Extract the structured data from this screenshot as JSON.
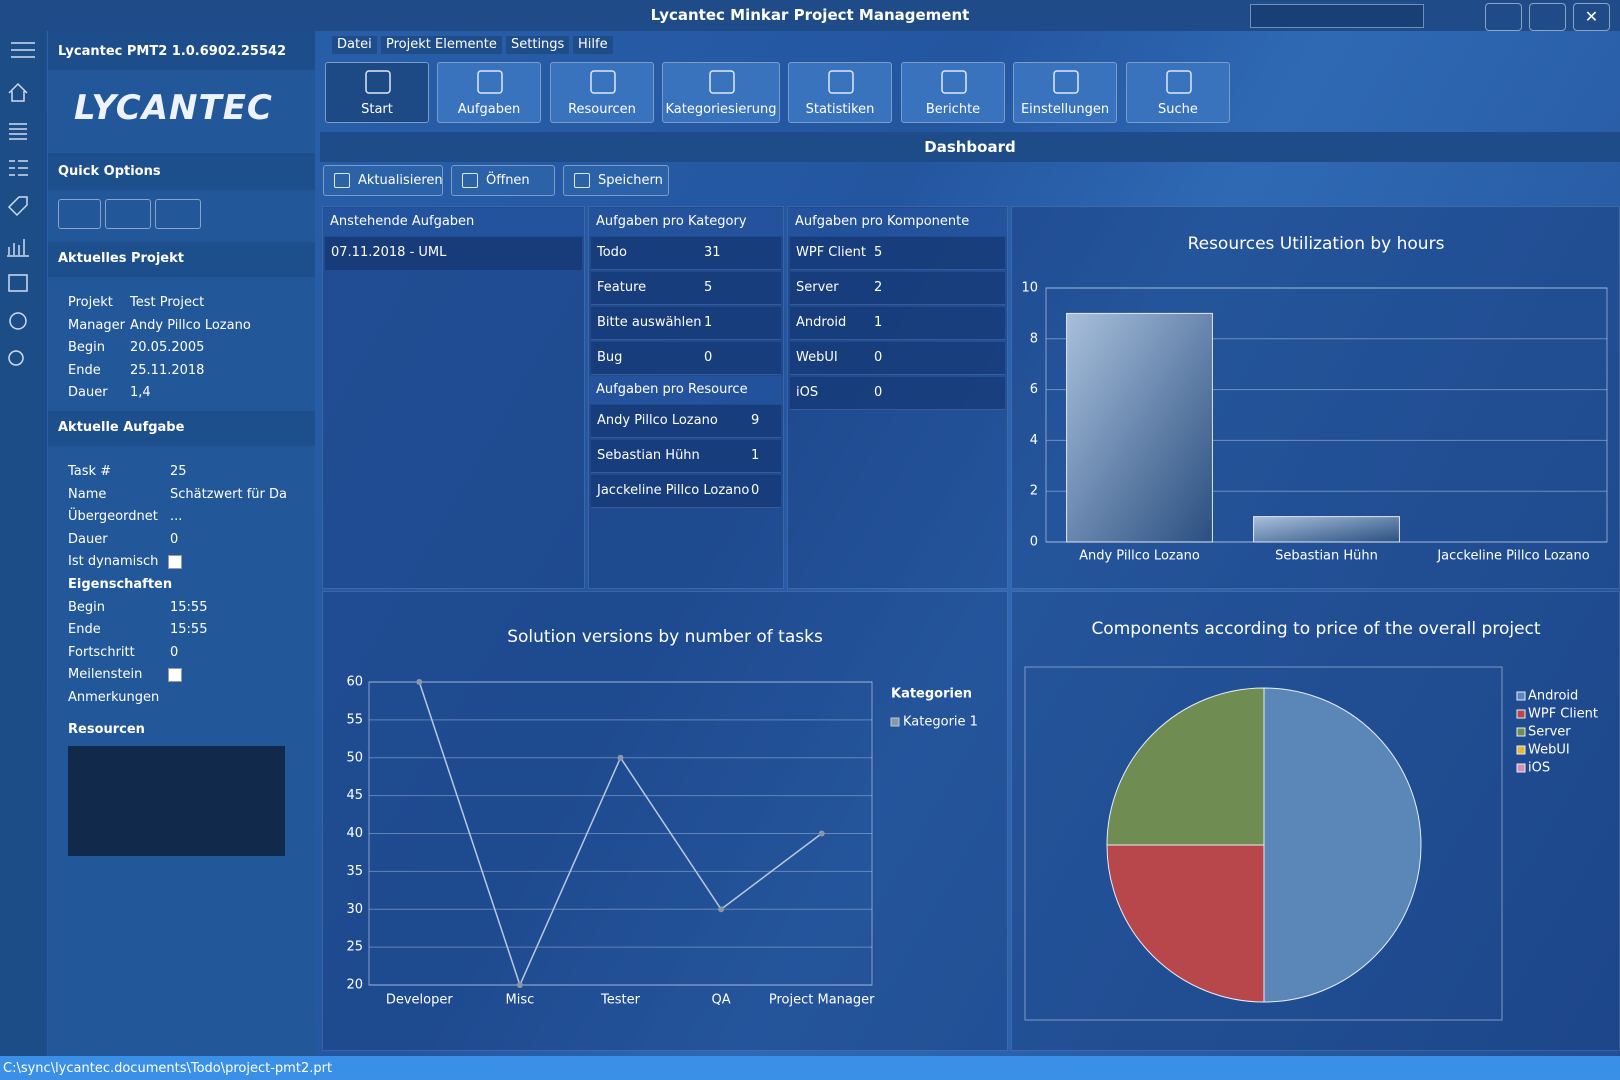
{
  "window": {
    "title": "Lycantec Minkar Project Management"
  },
  "sidebar": {
    "version": "Lycantec PMT2 1.0.6902.25542",
    "logo": "LYCANTEC",
    "quick_options": "Quick Options",
    "project": {
      "title": "Aktuelles Projekt",
      "rows": [
        [
          "Projekt",
          "Test Project"
        ],
        [
          "Manager",
          "Andy Pillco Lozano"
        ],
        [
          "Begin",
          "20.05.2005"
        ],
        [
          "Ende",
          "25.11.2018"
        ],
        [
          "Dauer",
          "1,4"
        ]
      ]
    },
    "task": {
      "title": "Aktuelle Aufgabe",
      "rows": [
        [
          "Task #",
          25
        ],
        [
          "Name",
          "Schätzwert für Daue"
        ],
        [
          "Übergeordnet",
          "..."
        ],
        [
          "Dauer",
          0
        ],
        [
          "Ist dynamisch",
          false
        ]
      ],
      "properties_title": "Eigenschaften",
      "properties": [
        [
          "Begin",
          "15:55"
        ],
        [
          "Ende",
          "15:55"
        ],
        [
          "Fortschritt",
          0
        ],
        [
          "Meilenstein",
          false
        ],
        [
          "Anmerkungen"
        ]
      ]
    },
    "resources_title": "Resourcen"
  },
  "menu": [
    "Datei",
    "Projekt Elemente",
    "Settings",
    "Hilfe"
  ],
  "toolbar": [
    "Start",
    "Aufgaben",
    "Resourcen",
    "Kategoriesierung",
    "Statistiken",
    "Berichte",
    "Einstellungen",
    "Suche"
  ],
  "dashboard": {
    "title": "Dashboard",
    "buttons": [
      "Aktualisieren",
      "Öffnen",
      "Speichern"
    ],
    "pending": {
      "title": "Anstehende Aufgaben",
      "items": [
        "07.11.2018 - UML"
      ]
    },
    "per_category": {
      "title": "Aufgaben pro Kategory",
      "rows": [
        [
          "Todo",
          31
        ],
        [
          "Feature",
          5
        ],
        [
          "Bitte auswählen",
          1
        ],
        [
          "Bug",
          0
        ]
      ]
    },
    "per_resource": {
      "title": "Aufgaben pro Resource",
      "rows": [
        [
          "Andy Pillco Lozano",
          9
        ],
        [
          "Sebastian Hühn",
          1
        ],
        [
          "Jacckeline Pillco Lozano",
          0
        ]
      ]
    },
    "per_component": {
      "title": "Aufgaben pro Komponente",
      "rows": [
        [
          "WPF Client",
          5
        ],
        [
          "Server",
          2
        ],
        [
          "Android",
          1
        ],
        [
          "WebUI",
          0
        ],
        [
          "iOS",
          0
        ]
      ]
    },
    "resource_chart": {
      "type": "bar",
      "title": "Resources Utilization by hours",
      "categories": [
        "Andy Pillco Lozano",
        "Sebastian Hühn",
        "Jacckeline Pillco Lozano"
      ],
      "values": [
        9,
        1,
        0
      ],
      "color": "#a9c0dc",
      "ylim": [
        0,
        10
      ],
      "yticks": [
        0,
        2,
        4,
        6,
        8,
        10
      ],
      "grid": true
    },
    "version_chart": {
      "type": "line",
      "title": "Solution versions by number of tasks",
      "categories": [
        "Developer",
        "Misc",
        "Tester",
        "QA",
        "Project Manager"
      ],
      "series": [
        {
          "name": "Kategorie 1",
          "color": "#b9c8de",
          "values": [
            60,
            20,
            50,
            30,
            40
          ]
        }
      ],
      "ylim": [
        20,
        60
      ],
      "yticks": [
        20,
        25,
        30,
        35,
        40,
        45,
        50,
        55,
        60
      ],
      "grid": true,
      "legend_title": "Kategorien"
    },
    "component_chart": {
      "type": "pie",
      "title": "Components according to price of the overall project",
      "categories": [
        "Android",
        "WPF Client",
        "Server",
        "WebUI",
        "iOS"
      ],
      "values": [
        50,
        25,
        25,
        0,
        0
      ],
      "colors": [
        "#5b86b8",
        "#b8474c",
        "#6f8c52",
        "#e6b637",
        "#d88fb3"
      ]
    }
  },
  "status_bar": "C:\\sync\\lycantec.documents\\Todo\\project-pmt2.prt"
}
